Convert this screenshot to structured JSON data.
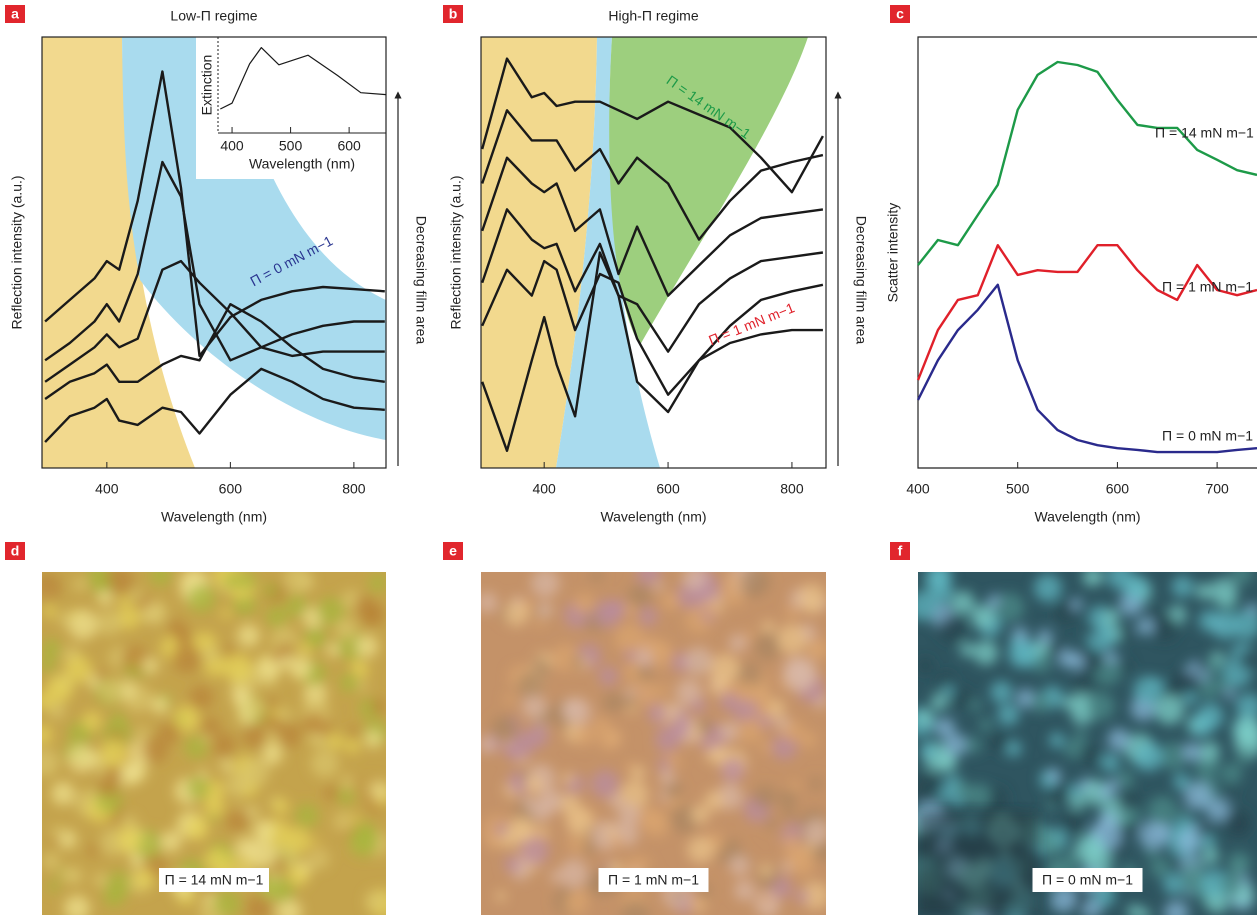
{
  "chart_data": [
    {
      "type": "line",
      "panel": "a",
      "title": "Low-Π regime",
      "xlabel": "Wavelength (nm)",
      "ylabel": "Reflection intensity (a.u.)",
      "xlim": [
        295,
        852
      ],
      "xticks": [
        400,
        600,
        800
      ],
      "ylim": [
        0,
        10
      ],
      "x": [
        300,
        340,
        380,
        400,
        420,
        450,
        490,
        520,
        550,
        600,
        650,
        700,
        750,
        800,
        850
      ],
      "series": [
        {
          "color": "#1a1a1a",
          "values": [
            3.4,
            3.9,
            4.4,
            4.8,
            4.6,
            6.2,
            9.2,
            6.5,
            2.6,
            3.5,
            3.9,
            4.1,
            4.2,
            4.15,
            4.1
          ]
        },
        {
          "color": "#1a1a1a",
          "values": [
            2.5,
            2.9,
            3.4,
            3.8,
            3.4,
            4.5,
            7.1,
            6.3,
            3.8,
            2.5,
            2.8,
            3.1,
            3.3,
            3.4,
            3.4
          ]
        },
        {
          "color": "#1a1a1a",
          "values": [
            2.0,
            2.4,
            2.8,
            3.1,
            2.8,
            3.0,
            4.6,
            4.8,
            4.3,
            3.6,
            2.8,
            2.6,
            2.7,
            2.7,
            2.7
          ]
        },
        {
          "color": "#1a1a1a",
          "values": [
            1.6,
            2.0,
            2.2,
            2.4,
            2.0,
            2.0,
            2.4,
            2.6,
            2.5,
            3.8,
            3.4,
            2.8,
            2.3,
            2.1,
            2.0
          ]
        },
        {
          "color": "#1a1a1a",
          "values": [
            0.6,
            1.2,
            1.4,
            1.6,
            1.1,
            1.0,
            1.4,
            1.3,
            0.8,
            1.7,
            2.3,
            2.0,
            1.6,
            1.4,
            1.35
          ]
        }
      ],
      "annotations": [
        "Π = 0 mN m−1",
        "Decreasing film area"
      ]
    },
    {
      "type": "line",
      "panel": "b",
      "title": "High-Π regime",
      "xlabel": "Wavelength (nm)",
      "ylabel": "Reflection intensity (a.u.)",
      "xlim": [
        298,
        855
      ],
      "xticks": [
        400,
        600,
        800
      ],
      "ylim": [
        0,
        10
      ],
      "x": [
        300,
        340,
        380,
        400,
        420,
        450,
        490,
        520,
        550,
        600,
        650,
        700,
        750,
        800,
        850
      ],
      "series": [
        {
          "color": "#1a1a1a",
          "values": [
            7.4,
            9.5,
            8.6,
            8.7,
            8.4,
            8.5,
            8.5,
            8.3,
            8.1,
            8.5,
            8.2,
            7.9,
            7.2,
            6.4,
            7.7
          ]
        },
        {
          "color": "#1a1a1a",
          "values": [
            6.6,
            8.3,
            7.6,
            7.6,
            7.6,
            6.9,
            7.4,
            6.6,
            7.2,
            6.6,
            5.3,
            6.2,
            6.9,
            7.1,
            7.26
          ]
        },
        {
          "color": "#1a1a1a",
          "values": [
            5.5,
            7.2,
            6.6,
            6.4,
            6.6,
            5.5,
            6.0,
            4.5,
            5.6,
            4.0,
            4.7,
            5.4,
            5.8,
            5.9,
            6.0
          ]
        },
        {
          "color": "#1a1a1a",
          "values": [
            4.3,
            6.0,
            5.3,
            5.1,
            5.2,
            4.1,
            5.2,
            4.0,
            3.8,
            2.7,
            3.8,
            4.4,
            4.8,
            4.9,
            5.0
          ]
        },
        {
          "color": "#1a1a1a",
          "values": [
            3.3,
            4.6,
            4.0,
            4.8,
            4.6,
            3.2,
            4.5,
            4.3,
            3.0,
            1.7,
            2.5,
            3.3,
            3.9,
            4.1,
            4.25
          ]
        },
        {
          "color": "#1a1a1a",
          "values": [
            2.0,
            0.4,
            2.5,
            3.5,
            2.4,
            1.2,
            5.0,
            4.0,
            2.0,
            1.3,
            2.5,
            2.9,
            3.1,
            3.2,
            3.2
          ]
        }
      ],
      "annotations": [
        "Π = 14 mN m−1",
        "Π = 1 mN m−1",
        "Decreasing film area"
      ]
    },
    {
      "type": "line",
      "panel": "c",
      "xlabel": "Wavelength (nm)",
      "ylabel": "Scatter intensity",
      "xlim": [
        400,
        740
      ],
      "xticks": [
        400,
        500,
        600,
        700
      ],
      "ylim": [
        0,
        10
      ],
      "x": [
        400,
        420,
        440,
        460,
        480,
        500,
        520,
        540,
        560,
        580,
        600,
        620,
        640,
        660,
        680,
        700,
        720,
        740
      ],
      "series": [
        {
          "color": "#1d9a48",
          "values": [
            4.71,
            5.29,
            5.17,
            5.87,
            6.57,
            8.31,
            9.12,
            9.42,
            9.35,
            9.19,
            8.54,
            7.96,
            7.89,
            7.89,
            7.38,
            7.15,
            6.91,
            6.8
          ]
        },
        {
          "color": "#e0202a",
          "values": [
            2.04,
            3.2,
            3.9,
            4.01,
            5.17,
            4.48,
            4.59,
            4.55,
            4.55,
            5.17,
            5.17,
            4.59,
            4.13,
            3.9,
            4.71,
            4.13,
            4.01,
            4.13
          ]
        },
        {
          "color": "#2a2a8c",
          "values": [
            1.58,
            2.5,
            3.2,
            3.67,
            4.25,
            2.5,
            1.35,
            0.88,
            0.65,
            0.53,
            0.46,
            0.42,
            0.37,
            0.37,
            0.37,
            0.37,
            0.42,
            0.46
          ]
        }
      ],
      "annotations": [
        "Π = 14 mN m−1",
        "Π = 1 mN m−1",
        "Π = 0 mN m−1"
      ]
    },
    {
      "type": "line",
      "xlabel": "Wavelength (nm)",
      "ylabel": "Extinction",
      "xlim": [
        376,
        663
      ],
      "xticks": [
        400,
        500,
        600
      ],
      "ylim": [
        0,
        1
      ],
      "x": [
        380,
        400,
        430,
        450,
        480,
        530,
        580,
        620,
        663
      ],
      "series": [
        {
          "color": "#1a1a1a",
          "values": [
            0.25,
            0.31,
            0.72,
            0.89,
            0.71,
            0.81,
            0.6,
            0.42,
            0.4
          ]
        }
      ]
    }
  ],
  "images": [
    {
      "panel": "d",
      "label": "Π = 14 mN m−1"
    },
    {
      "panel": "e",
      "label": "Π = 1 mN m−1"
    },
    {
      "panel": "f",
      "label": "Π = 0 mN m−1"
    }
  ]
}
